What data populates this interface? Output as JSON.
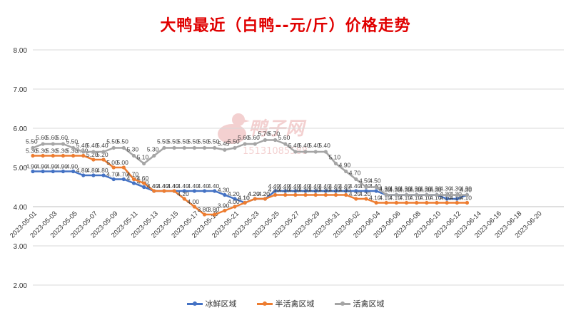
{
  "title": "大鸭最近（白鸭--元/斤）价格走势",
  "watermark": {
    "logo_text": "鸭子网",
    "phone": "15131085588"
  },
  "colors": {
    "title": "#e00000",
    "ice_fresh": "#4472c4",
    "semi_live": "#ed7d31",
    "live": "#a5a5a5",
    "grid": "#d9d9d9"
  },
  "chart_data": {
    "type": "line",
    "title": "大鸭最近（白鸭--元/斤）价格走势",
    "xlabel": "",
    "ylabel": "",
    "ylim": [
      2.0,
      8.0
    ],
    "y_ticks": [
      "2.00",
      "3.00",
      "4.00",
      "5.00",
      "6.00",
      "7.00",
      "8.00"
    ],
    "y_tick_values": [
      2,
      3,
      4,
      5,
      6,
      7,
      8
    ],
    "x_start": "2023-05-01",
    "x_tick_labels": [
      "2023-05-01",
      "2023-05-03",
      "2023-05-05",
      "2023-05-07",
      "2023-05-09",
      "2023-05-11",
      "2023-05-13",
      "2023-05-15",
      "2023-05-17",
      "2023-05-19",
      "2023-05-21",
      "2023-05-23",
      "2023-05-25",
      "2023-05-27",
      "2023-05-29",
      "2023-05-31",
      "2023-06-02",
      "2023-06-04",
      "2023-06-06",
      "2023-06-08",
      "2023-06-10",
      "2023-06-12",
      "2023-06-14",
      "2023-06-16",
      "2023-06-18",
      "2023-06-20"
    ],
    "grid": true,
    "legend_position": "bottom",
    "series": [
      {
        "name": "冰鲜区域",
        "color": "#4472c4",
        "values": [
          4.9,
          4.9,
          4.9,
          4.9,
          4.9,
          4.8,
          4.8,
          4.8,
          4.7,
          4.7,
          4.6,
          4.5,
          4.4,
          4.4,
          4.4,
          4.4,
          4.4,
          4.4,
          4.4,
          4.3,
          4.2,
          4.1,
          4.2,
          4.2,
          4.4,
          4.4,
          4.4,
          4.4,
          4.4,
          4.4,
          4.4,
          4.4,
          4.4,
          4.4,
          4.4,
          4.3,
          4.3,
          4.3,
          4.3,
          4.3,
          4.3,
          4.2,
          4.2,
          4.3
        ],
        "labels": [
          "4.90",
          "4.90",
          "4.90",
          "4.90",
          "4.90",
          "4.80",
          "4.80",
          "4.80",
          "4.70",
          "4.70",
          "4.60",
          "4.50",
          "4.40",
          "4.40",
          "4.40",
          "4.40",
          "4.40",
          "4.40",
          "4.40",
          "4.30",
          "4.20",
          "4.10",
          "4.20",
          "4.20",
          "4.40",
          "4.40",
          "4.40",
          "4.40",
          "4.40",
          "4.40",
          "4.40",
          "4.40",
          "4.40",
          "4.40",
          "4.40",
          "4.30",
          "4.30",
          "4.30",
          "4.30",
          "4.30",
          "4.30",
          "4.20",
          "4.20",
          "4.30"
        ]
      },
      {
        "name": "半活禽区域",
        "color": "#ed7d31",
        "values": [
          5.3,
          5.3,
          5.3,
          5.3,
          5.3,
          5.3,
          5.2,
          5.2,
          5.0,
          5.0,
          4.7,
          4.6,
          4.4,
          4.4,
          4.4,
          4.2,
          4.0,
          3.8,
          3.8,
          3.9,
          4.0,
          4.1,
          4.2,
          4.2,
          4.3,
          4.3,
          4.3,
          4.3,
          4.3,
          4.3,
          4.3,
          4.3,
          4.2,
          4.2,
          4.1,
          4.1,
          4.1,
          4.1,
          4.1,
          4.1,
          4.1,
          4.1,
          4.1,
          4.1
        ],
        "labels": [
          "5.30",
          "5.30",
          "5.30",
          "5.30",
          "5.30",
          "5.30",
          "5.20",
          "5.20",
          "5.00",
          "5.00",
          "4.70",
          "4.60",
          "4.40",
          "4.40",
          "4.40",
          "4.20",
          "4.00",
          "3.80",
          "3.80",
          "3.90",
          "4.00",
          "4.10",
          "4.20",
          "4.20",
          "4.30",
          "4.30",
          "4.30",
          "4.30",
          "4.30",
          "4.30",
          "4.30",
          "4.30",
          "4.20",
          "4.20",
          "4.10",
          "4.10",
          "4.10",
          "4.10",
          "4.10",
          "4.10",
          "4.10",
          "4.10",
          "4.10",
          "4.10"
        ]
      },
      {
        "name": "活禽区域",
        "color": "#a5a5a5",
        "values": [
          5.5,
          5.6,
          5.6,
          5.6,
          5.5,
          5.4,
          5.4,
          5.4,
          5.5,
          5.5,
          5.3,
          5.1,
          5.3,
          5.5,
          5.5,
          5.5,
          5.5,
          5.5,
          5.5,
          5.45,
          5.5,
          5.6,
          5.6,
          5.7,
          5.7,
          5.6,
          5.4,
          5.4,
          5.4,
          5.4,
          5.1,
          4.9,
          4.7,
          4.5,
          4.5,
          4.3,
          4.3,
          4.3,
          4.3,
          4.3,
          4.3,
          4.3,
          4.3,
          4.3
        ],
        "labels": [
          "5.50",
          "5.60",
          "5.60",
          "5.60",
          "5.50",
          "5.40",
          "5.40",
          "5.40",
          "5.50",
          "5.50",
          "5.30",
          "5.10",
          "5.30",
          "5.50",
          "5.50",
          "5.50",
          "5.50",
          "5.50",
          "5.50",
          "5.45",
          "5.50",
          "5.60",
          "5.60",
          "5.70",
          "5.70",
          "5.60",
          "5.40",
          "5.40",
          "5.40",
          "5.40",
          "5.10",
          "4.90",
          "4.70",
          "4.50",
          "4.50",
          "4.30",
          "4.30",
          "4.30",
          "4.30",
          "4.30",
          "4.30",
          "4.30",
          "4.30",
          "4.30"
        ]
      }
    ]
  }
}
